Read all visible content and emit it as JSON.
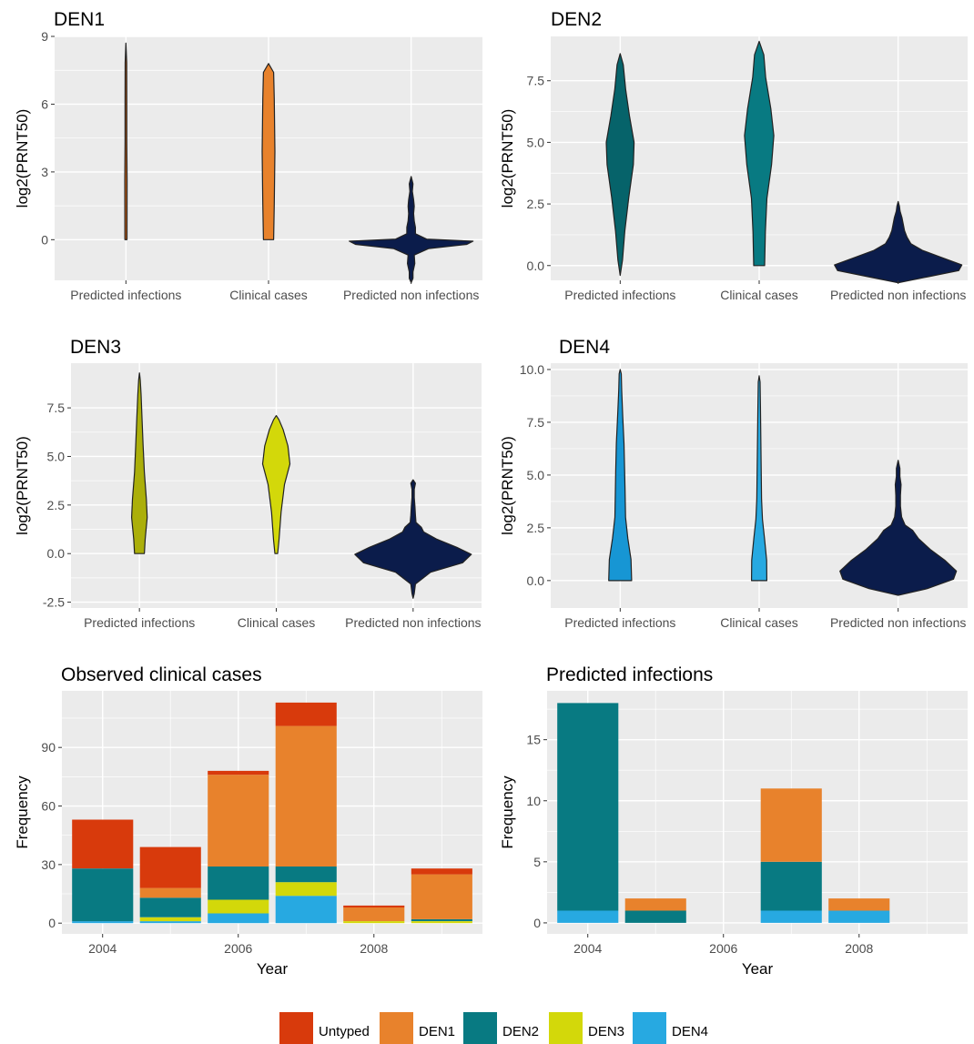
{
  "colors": {
    "untyped": "#D83A0C",
    "den1": "#E8822C",
    "den2": "#087A82",
    "den3": "#D3D80A",
    "den4": "#27A9E1",
    "non_infection": "#0B1C4B",
    "panel_bg": "#EBEBEB"
  },
  "chart_data": [
    {
      "type": "violin",
      "title": "DEN1",
      "ylabel": "log2(PRNT50)",
      "categories": [
        "Predicted infections",
        "Clinical cases",
        "Predicted non infections"
      ],
      "ylim": [
        -1.8,
        9.0
      ],
      "yticks": [
        "0",
        "3",
        "6",
        "9"
      ],
      "ytick_values": [
        0,
        3,
        6,
        9
      ],
      "series": [
        {
          "ymin": 0,
          "ymax": 8.7,
          "fill": "#C05E17"
        },
        {
          "ymin": 0,
          "ymax": 7.8,
          "fill": "#E8822C"
        },
        {
          "ymin": -1.9,
          "ymax": 2.8,
          "fill": "#0B1C4B"
        }
      ]
    },
    {
      "type": "violin",
      "title": "DEN2",
      "ylabel": "log2(PRNT50)",
      "categories": [
        "Predicted infections",
        "Clinical cases",
        "Predicted non infections"
      ],
      "ylim": [
        -0.6,
        9.3
      ],
      "yticks": [
        "0.0",
        "2.5",
        "5.0",
        "7.5"
      ],
      "ytick_values": [
        0,
        2.5,
        5,
        7.5
      ],
      "series": [
        {
          "ymin": -0.4,
          "ymax": 8.6,
          "fill": "#06636A"
        },
        {
          "ymin": 0,
          "ymax": 9.1,
          "fill": "#087A82"
        },
        {
          "ymin": -0.7,
          "ymax": 2.6,
          "fill": "#0B1C4B"
        }
      ]
    },
    {
      "type": "violin",
      "title": "DEN3",
      "ylabel": "log2(PRNT50)",
      "categories": [
        "Predicted infections",
        "Clinical cases",
        "Predicted non infections"
      ],
      "ylim": [
        -2.8,
        9.8
      ],
      "yticks": [
        "-2.5",
        "0.0",
        "2.5",
        "5.0",
        "7.5"
      ],
      "ytick_values": [
        -2.5,
        0,
        2.5,
        5,
        7.5
      ],
      "series": [
        {
          "ymin": 0,
          "ymax": 9.3,
          "fill": "#ABAF0A"
        },
        {
          "ymin": 0,
          "ymax": 7.1,
          "fill": "#D3D80A"
        },
        {
          "ymin": -2.3,
          "ymax": 3.8,
          "fill": "#0B1C4B"
        }
      ]
    },
    {
      "type": "violin",
      "title": "DEN4",
      "ylabel": "log2(PRNT50)",
      "categories": [
        "Predicted infections",
        "Clinical cases",
        "Predicted non infections"
      ],
      "ylim": [
        -1.3,
        10.3
      ],
      "yticks": [
        "0.0",
        "2.5",
        "5.0",
        "7.5",
        "10.0"
      ],
      "ytick_values": [
        0,
        2.5,
        5,
        7.5,
        10
      ],
      "series": [
        {
          "ymin": 0,
          "ymax": 10.0,
          "fill": "#1796D4"
        },
        {
          "ymin": 0,
          "ymax": 9.7,
          "fill": "#27A9E1"
        },
        {
          "ymin": -0.7,
          "ymax": 5.7,
          "fill": "#0B1C4B"
        }
      ]
    },
    {
      "type": "bar",
      "stacked": true,
      "title": "Observed clinical cases",
      "xlabel": "Year",
      "ylabel": "Frequency",
      "x": [
        2004,
        2005,
        2006,
        2007,
        2008,
        2009
      ],
      "xticks": [
        "2004",
        "2006",
        "2008"
      ],
      "xtick_values": [
        2004,
        2006,
        2008
      ],
      "xlim": [
        2003.4,
        2009.6
      ],
      "ylim": [
        -5.5,
        119
      ],
      "yticks": [
        "0",
        "30",
        "60",
        "90"
      ],
      "ytick_values": [
        0,
        30,
        60,
        90
      ],
      "series": [
        {
          "name": "DEN4",
          "values": [
            1,
            1,
            5,
            14,
            0,
            0
          ]
        },
        {
          "name": "DEN3",
          "values": [
            0,
            2,
            7,
            7,
            1,
            1
          ]
        },
        {
          "name": "DEN2",
          "values": [
            27,
            10,
            17,
            8,
            0,
            1
          ]
        },
        {
          "name": "DEN1",
          "values": [
            0,
            5,
            47,
            72,
            7,
            23
          ]
        },
        {
          "name": "Untyped",
          "values": [
            25,
            21,
            2,
            12,
            1,
            3
          ]
        }
      ]
    },
    {
      "type": "bar",
      "stacked": true,
      "title": "Predicted infections",
      "xlabel": "Year",
      "ylabel": "Frequency",
      "x": [
        2004,
        2005,
        2006,
        2007,
        2008,
        2009
      ],
      "xticks": [
        "2004",
        "2006",
        "2008"
      ],
      "xtick_values": [
        2004,
        2006,
        2008
      ],
      "xlim": [
        2003.4,
        2009.6
      ],
      "ylim": [
        -0.9,
        19
      ],
      "yticks": [
        "0",
        "5",
        "10",
        "15"
      ],
      "ytick_values": [
        0,
        5,
        10,
        15
      ],
      "series": [
        {
          "name": "DEN4",
          "values": [
            1,
            0,
            0,
            1,
            1,
            0
          ]
        },
        {
          "name": "DEN3",
          "values": [
            0,
            0,
            0,
            0,
            0,
            0
          ]
        },
        {
          "name": "DEN2",
          "values": [
            17,
            1,
            0,
            4,
            0,
            0
          ]
        },
        {
          "name": "DEN1",
          "values": [
            0,
            1,
            0,
            6,
            1,
            0
          ]
        },
        {
          "name": "Untyped",
          "values": [
            0,
            0,
            0,
            0,
            0,
            0
          ]
        }
      ]
    }
  ],
  "legend": {
    "placement": "bottom",
    "items": [
      {
        "label": "Untyped",
        "color": "#D83A0C"
      },
      {
        "label": "DEN1",
        "color": "#E8822C"
      },
      {
        "label": "DEN2",
        "color": "#087A82"
      },
      {
        "label": "DEN3",
        "color": "#D3D80A"
      },
      {
        "label": "DEN4",
        "color": "#27A9E1"
      }
    ]
  }
}
